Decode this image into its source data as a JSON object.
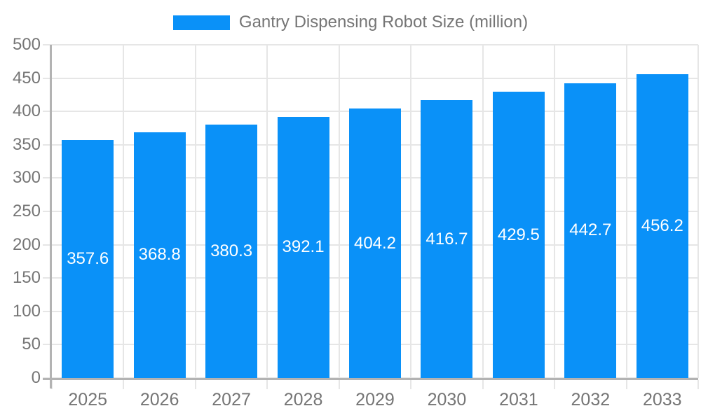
{
  "legend": {
    "label": "Gantry Dispensing Robot Size (million)"
  },
  "colors": {
    "bar": "#0a91f8",
    "grid": "#e6e6e6",
    "axis": "#b3b3b3",
    "axis_text": "#757575",
    "value_label": "#ffffff",
    "background": "#ffffff"
  },
  "chart_data": {
    "type": "bar",
    "title": "",
    "xlabel": "",
    "ylabel": "",
    "categories": [
      "2025",
      "2026",
      "2027",
      "2028",
      "2029",
      "2030",
      "2031",
      "2032",
      "2033"
    ],
    "series": [
      {
        "name": "Gantry Dispensing Robot Size (million)",
        "values": [
          357.6,
          368.8,
          380.3,
          392.1,
          404.2,
          416.7,
          429.5,
          442.7,
          456.2
        ]
      }
    ],
    "value_labels": [
      "357.6",
      "368.8",
      "380.3",
      "392.1",
      "404.2",
      "416.7",
      "429.5",
      "442.7",
      "456.2"
    ],
    "value_label_position": "inside-center",
    "ylim": [
      0,
      500
    ],
    "y_ticks": [
      0,
      50,
      100,
      150,
      200,
      250,
      300,
      350,
      400,
      450,
      500
    ],
    "grid": true,
    "legend_position": "top-center"
  }
}
